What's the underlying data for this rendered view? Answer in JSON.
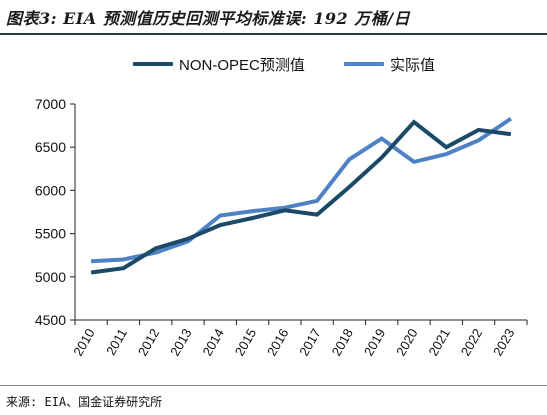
{
  "title": "图表3: EIA 预测值历史回测平均标准误: 192 万桶/日",
  "source": "来源: EIA、国金证券研究所",
  "chart_data": {
    "type": "line",
    "title": "图表3: EIA 预测值历史回测平均标准误: 192 万桶/日",
    "xlabel": "",
    "ylabel": "",
    "categories": [
      "2010",
      "2011",
      "2012",
      "2013",
      "2014",
      "2015",
      "2016",
      "2017",
      "2018",
      "2019",
      "2020",
      "2021",
      "2022",
      "2023"
    ],
    "ylim": [
      4500,
      7000
    ],
    "yticks": [
      4500,
      5000,
      5500,
      6000,
      6500,
      7000
    ],
    "grid": false,
    "legend_position": "top-center",
    "series": [
      {
        "name": "NON-OPEC预测值",
        "color": "#1b4a68",
        "values": [
          5050,
          5100,
          5330,
          5440,
          5600,
          5680,
          5770,
          5720,
          6040,
          6380,
          6790,
          6500,
          6700,
          6650
        ]
      },
      {
        "name": "实际值",
        "color": "#4e82c4",
        "values": [
          5180,
          5200,
          5280,
          5410,
          5710,
          5760,
          5800,
          5880,
          6360,
          6600,
          6330,
          6420,
          6580,
          6830
        ]
      }
    ]
  }
}
